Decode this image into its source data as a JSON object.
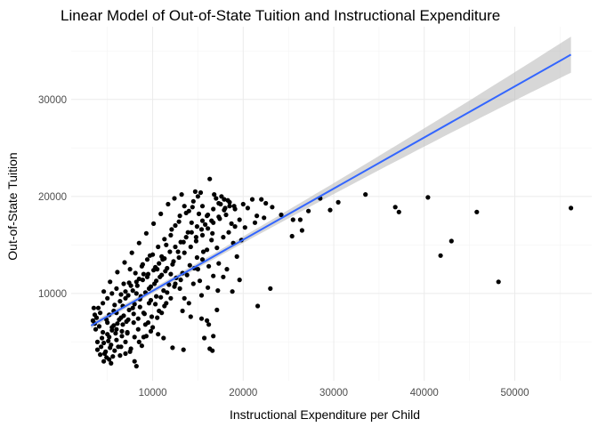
{
  "chart_data": {
    "type": "scatter",
    "title": "Linear Model of Out-of-State Tuition and Instructional Expenditure",
    "xlabel": "Instructional Expenditure per Child",
    "ylabel": "Out-of-State Tuition",
    "xlim": [
      1000,
      58500
    ],
    "ylim": [
      1000,
      37500
    ],
    "x_ticks": [
      10000,
      20000,
      30000,
      40000,
      50000
    ],
    "y_ticks": [
      10000,
      20000,
      30000
    ],
    "grid": true,
    "point_color": "#000000",
    "fit_line": {
      "method": "linear",
      "color": "#3366FF",
      "ribbon_color": "#BDBDBD",
      "intercept": 5000,
      "slope": 0.527,
      "x_range": [
        3200,
        56200
      ]
    },
    "points": [
      [
        5000,
        7000
      ],
      [
        5500,
        6500
      ],
      [
        6000,
        8000
      ],
      [
        4500,
        9000
      ],
      [
        6500,
        7500
      ],
      [
        7000,
        9500
      ],
      [
        5200,
        5500
      ],
      [
        4800,
        4000
      ],
      [
        5600,
        3500
      ],
      [
        6200,
        4500
      ],
      [
        7200,
        6000
      ],
      [
        7800,
        8500
      ],
      [
        8200,
        10000
      ],
      [
        8500,
        11500
      ],
      [
        9000,
        12000
      ],
      [
        7500,
        12500
      ],
      [
        6800,
        11000
      ],
      [
        6000,
        10500
      ],
      [
        5500,
        10000
      ],
      [
        5000,
        9500
      ],
      [
        4200,
        8000
      ],
      [
        3800,
        7500
      ],
      [
        4000,
        8500
      ],
      [
        4500,
        6000
      ],
      [
        5200,
        7800
      ],
      [
        5800,
        8800
      ],
      [
        6400,
        9200
      ],
      [
        7000,
        10200
      ],
      [
        7600,
        10800
      ],
      [
        8200,
        11200
      ],
      [
        8800,
        12800
      ],
      [
        9400,
        13500
      ],
      [
        10000,
        14000
      ],
      [
        10500,
        12500
      ],
      [
        11000,
        13800
      ],
      [
        11500,
        15000
      ],
      [
        12000,
        16000
      ],
      [
        12500,
        17000
      ],
      [
        13000,
        18000
      ],
      [
        13500,
        19000
      ],
      [
        14000,
        18500
      ],
      [
        14500,
        19500
      ],
      [
        15000,
        20000
      ],
      [
        15500,
        19000
      ],
      [
        16000,
        18000
      ],
      [
        16500,
        17500
      ],
      [
        17000,
        19800
      ],
      [
        17500,
        19200
      ],
      [
        18000,
        18800
      ],
      [
        16300,
        21800
      ],
      [
        12000,
        12000
      ],
      [
        12500,
        11000
      ],
      [
        13000,
        10500
      ],
      [
        13500,
        9500
      ],
      [
        14000,
        9000
      ],
      [
        14500,
        11000
      ],
      [
        15000,
        12500
      ],
      [
        15500,
        13500
      ],
      [
        16000,
        14500
      ],
      [
        16500,
        15500
      ],
      [
        9000,
        8000
      ],
      [
        9500,
        7000
      ],
      [
        10000,
        6500
      ],
      [
        10500,
        7500
      ],
      [
        11000,
        8000
      ],
      [
        11500,
        9000
      ],
      [
        12000,
        9500
      ],
      [
        8000,
        5500
      ],
      [
        8500,
        5000
      ],
      [
        9000,
        5500
      ],
      [
        7000,
        5000
      ],
      [
        6500,
        4500
      ],
      [
        7500,
        4000
      ],
      [
        8000,
        3000
      ],
      [
        8200,
        2500
      ],
      [
        5400,
        2800
      ],
      [
        5200,
        3200
      ],
      [
        4700,
        3800
      ],
      [
        4300,
        4500
      ],
      [
        3900,
        5000
      ],
      [
        3600,
        7800
      ],
      [
        3500,
        8500
      ],
      [
        4600,
        10200
      ],
      [
        5300,
        11200
      ],
      [
        6100,
        12200
      ],
      [
        6900,
        13200
      ],
      [
        7700,
        14200
      ],
      [
        8500,
        15200
      ],
      [
        9300,
        16200
      ],
      [
        10100,
        17200
      ],
      [
        10900,
        18200
      ],
      [
        11700,
        19200
      ],
      [
        12400,
        19800
      ],
      [
        13200,
        20200
      ],
      [
        14700,
        20500
      ],
      [
        15300,
        20400
      ],
      [
        16800,
        20200
      ],
      [
        17600,
        20000
      ],
      [
        18300,
        19600
      ],
      [
        19000,
        19000
      ],
      [
        9600,
        10500
      ],
      [
        10200,
        11000
      ],
      [
        10800,
        11700
      ],
      [
        11400,
        12300
      ],
      [
        7300,
        9800
      ],
      [
        6700,
        8700
      ],
      [
        6300,
        7300
      ],
      [
        5700,
        6700
      ],
      [
        7900,
        7900
      ],
      [
        8600,
        8600
      ],
      [
        9800,
        9300
      ],
      [
        10400,
        9700
      ],
      [
        11200,
        10300
      ],
      [
        11800,
        10900
      ],
      [
        12600,
        11600
      ],
      [
        13300,
        12100
      ],
      [
        14100,
        12900
      ],
      [
        14900,
        13700
      ],
      [
        15600,
        14300
      ],
      [
        16200,
        12800
      ],
      [
        17100,
        14700
      ],
      [
        17800,
        15800
      ],
      [
        18400,
        16300
      ],
      [
        19100,
        16900
      ],
      [
        19600,
        17600
      ],
      [
        18900,
        15200
      ],
      [
        17300,
        13100
      ],
      [
        16700,
        11800
      ],
      [
        16100,
        10600
      ],
      [
        15400,
        9800
      ],
      [
        8400,
        6300
      ],
      [
        9200,
        6800
      ],
      [
        9900,
        7600
      ],
      [
        10700,
        8200
      ],
      [
        11300,
        8700
      ],
      [
        7100,
        7100
      ],
      [
        6600,
        6100
      ],
      [
        5900,
        5900
      ],
      [
        5100,
        5100
      ],
      [
        4400,
        5400
      ],
      [
        4100,
        6600
      ],
      [
        4900,
        7300
      ],
      [
        5700,
        8200
      ],
      [
        6500,
        9900
      ],
      [
        7400,
        11100
      ],
      [
        8100,
        12100
      ],
      [
        8900,
        13000
      ],
      [
        9700,
        13900
      ],
      [
        10600,
        14800
      ],
      [
        11300,
        15600
      ],
      [
        12100,
        16600
      ],
      [
        12900,
        17400
      ],
      [
        13700,
        18300
      ],
      [
        14400,
        18900
      ],
      [
        15100,
        18200
      ],
      [
        15800,
        17100
      ],
      [
        16600,
        16200
      ],
      [
        17400,
        17700
      ],
      [
        18100,
        18100
      ],
      [
        18700,
        17200
      ],
      [
        12300,
        13300
      ],
      [
        12800,
        14300
      ],
      [
        13400,
        15300
      ],
      [
        13900,
        16300
      ],
      [
        14300,
        17300
      ],
      [
        14800,
        15800
      ],
      [
        15400,
        16600
      ],
      [
        9400,
        11700
      ],
      [
        10300,
        12700
      ],
      [
        11100,
        13500
      ],
      [
        8700,
        9700
      ],
      [
        9600,
        9000
      ],
      [
        10300,
        8900
      ],
      [
        10900,
        9600
      ],
      [
        11600,
        10100
      ],
      [
        12400,
        10700
      ],
      [
        13100,
        11400
      ],
      [
        13800,
        11900
      ],
      [
        14600,
        12600
      ],
      [
        15200,
        11300
      ],
      [
        6000,
        6300
      ],
      [
        6700,
        6800
      ],
      [
        7300,
        7300
      ],
      [
        7900,
        7000
      ],
      [
        8400,
        7400
      ],
      [
        9100,
        7900
      ],
      [
        5400,
        4700
      ],
      [
        6000,
        5200
      ],
      [
        6600,
        5600
      ],
      [
        7200,
        5900
      ],
      [
        4600,
        4900
      ],
      [
        5000,
        5800
      ],
      [
        5500,
        6200
      ],
      [
        6100,
        6900
      ],
      [
        6800,
        7700
      ],
      [
        7400,
        8300
      ],
      [
        8000,
        8900
      ],
      [
        8600,
        9400
      ],
      [
        9200,
        10100
      ],
      [
        9800,
        10700
      ],
      [
        10400,
        11300
      ],
      [
        11000,
        11900
      ],
      [
        11600,
        12600
      ],
      [
        12200,
        13000
      ],
      [
        12900,
        13700
      ],
      [
        13500,
        14200
      ],
      [
        14200,
        14800
      ],
      [
        14800,
        15400
      ],
      [
        15500,
        16000
      ],
      [
        16100,
        16700
      ],
      [
        16700,
        17300
      ],
      [
        17300,
        17900
      ],
      [
        17900,
        18600
      ],
      [
        18500,
        19000
      ],
      [
        13300,
        8200
      ],
      [
        14200,
        7600
      ],
      [
        15400,
        7400
      ],
      [
        16200,
        6800
      ],
      [
        16700,
        5600
      ],
      [
        17100,
        8300
      ],
      [
        16300,
        4300
      ],
      [
        13400,
        4200
      ],
      [
        12200,
        4400
      ],
      [
        11200,
        5400
      ],
      [
        10600,
        5800
      ],
      [
        9800,
        6100
      ],
      [
        9300,
        5600
      ],
      [
        8800,
        4600
      ],
      [
        7600,
        4300
      ],
      [
        7000,
        3800
      ],
      [
        6400,
        3600
      ],
      [
        5800,
        4100
      ],
      [
        5300,
        4400
      ],
      [
        4900,
        3400
      ],
      [
        4600,
        3000
      ],
      [
        4200,
        3700
      ],
      [
        3900,
        4200
      ],
      [
        3700,
        6300
      ],
      [
        3600,
        6900
      ],
      [
        3400,
        7200
      ],
      [
        7800,
        10300
      ],
      [
        8300,
        10800
      ],
      [
        8900,
        11400
      ],
      [
        9500,
        12000
      ],
      [
        10100,
        12400
      ],
      [
        10700,
        13100
      ],
      [
        11300,
        13600
      ],
      [
        11900,
        14300
      ],
      [
        12500,
        14800
      ],
      [
        13100,
        15300
      ],
      [
        13700,
        15800
      ],
      [
        14300,
        16300
      ],
      [
        14900,
        16900
      ],
      [
        15500,
        17500
      ],
      [
        16100,
        18100
      ],
      [
        16700,
        18700
      ],
      [
        17300,
        19300
      ],
      [
        17900,
        19700
      ],
      [
        18500,
        19400
      ],
      [
        19100,
        18700
      ],
      [
        20000,
        19200
      ],
      [
        20500,
        18800
      ],
      [
        21000,
        19700
      ],
      [
        21500,
        18000
      ],
      [
        22000,
        19700
      ],
      [
        22500,
        19300
      ],
      [
        22300,
        17800
      ],
      [
        23200,
        18900
      ],
      [
        24200,
        18100
      ],
      [
        25500,
        17600
      ],
      [
        19800,
        15500
      ],
      [
        20200,
        16800
      ],
      [
        21300,
        17300
      ],
      [
        19300,
        13800
      ],
      [
        18200,
        12500
      ],
      [
        17800,
        11700
      ],
      [
        17200,
        10300
      ],
      [
        23000,
        10500
      ],
      [
        28500,
        19800
      ],
      [
        30500,
        19400
      ],
      [
        29600,
        18600
      ],
      [
        27200,
        18500
      ],
      [
        26300,
        17600
      ],
      [
        26500,
        16500
      ],
      [
        25400,
        15900
      ],
      [
        33500,
        20200
      ],
      [
        37200,
        18400
      ],
      [
        36800,
        18900
      ],
      [
        40400,
        19900
      ],
      [
        45800,
        18400
      ],
      [
        41800,
        13900
      ],
      [
        43000,
        15400
      ],
      [
        48200,
        11200
      ],
      [
        56200,
        18800
      ],
      [
        21600,
        8700
      ],
      [
        19600,
        11400
      ],
      [
        18800,
        10200
      ],
      [
        16600,
        4100
      ],
      [
        16000,
        7200
      ],
      [
        15700,
        5400
      ]
    ]
  }
}
